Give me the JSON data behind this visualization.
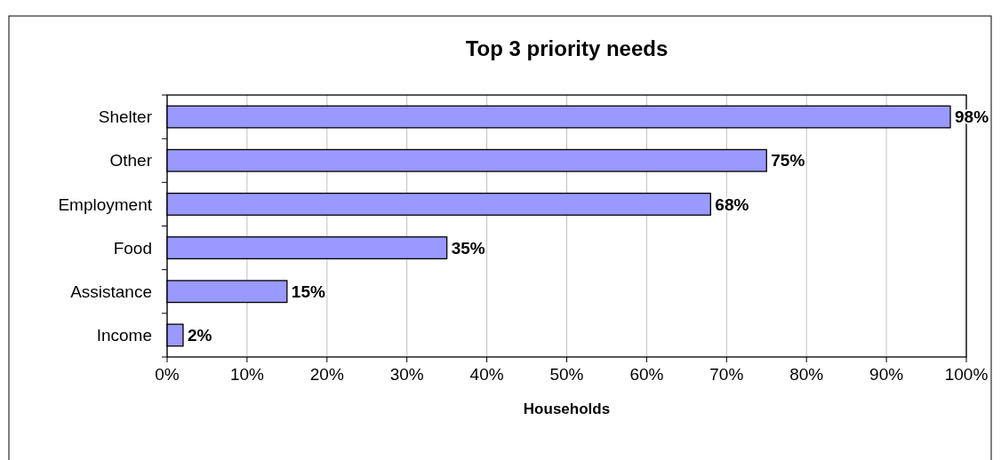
{
  "chart_data": {
    "type": "bar",
    "orientation": "horizontal",
    "title": "Top 3 priority needs",
    "xlabel": "Households",
    "categories": [
      "Shelter",
      "Other",
      "Employment",
      "Food",
      "Assistance",
      "Income"
    ],
    "values": [
      98,
      75,
      68,
      35,
      15,
      2
    ],
    "value_labels": [
      "98%",
      "75%",
      "68%",
      "35%",
      "15%",
      "2%"
    ],
    "color": "#9999ff",
    "xlim": [
      0,
      100
    ],
    "xticks": [
      {
        "value": 0,
        "label": "0%"
      },
      {
        "value": 10,
        "label": "10%"
      },
      {
        "value": 20,
        "label": "20%"
      },
      {
        "value": 30,
        "label": "30%"
      },
      {
        "value": 40,
        "label": "40%"
      },
      {
        "value": 50,
        "label": "50%"
      },
      {
        "value": 60,
        "label": "60%"
      },
      {
        "value": 70,
        "label": "70%"
      },
      {
        "value": 80,
        "label": "80%"
      },
      {
        "value": 90,
        "label": "90%"
      },
      {
        "value": 100,
        "label": "100%"
      }
    ],
    "grid": "x"
  }
}
